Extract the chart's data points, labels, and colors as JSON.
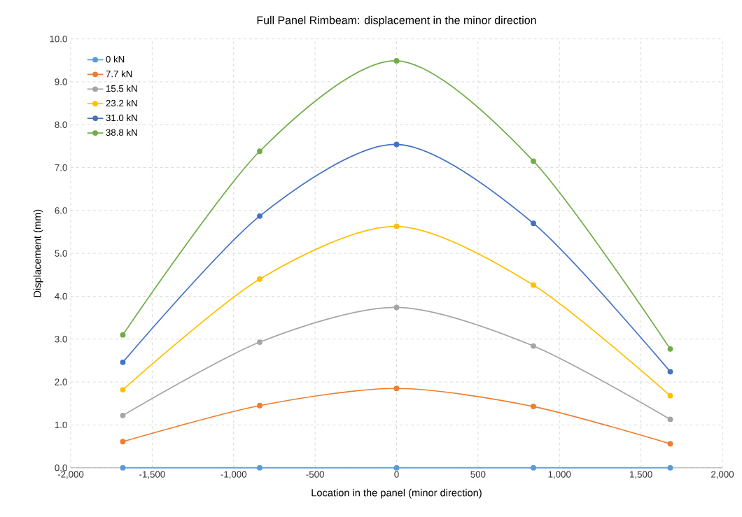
{
  "chart_data": {
    "type": "line",
    "title": "Full Panel Rimbeam: displacement in the minor direction",
    "xlabel": "Location in the panel (minor direction)",
    "ylabel": "Displacement (mm)",
    "x": [
      -1680,
      -840,
      0,
      840,
      1680
    ],
    "series": [
      {
        "name": "0 kN",
        "color": "#5b9bd5",
        "values": [
          0,
          0,
          0,
          0,
          0
        ]
      },
      {
        "name": "7.7 kN",
        "color": "#ed7d31",
        "values": [
          0.61,
          1.45,
          1.85,
          1.43,
          0.56
        ]
      },
      {
        "name": "15.5 kN",
        "color": "#a5a5a5",
        "values": [
          1.22,
          2.93,
          3.74,
          2.84,
          1.13
        ]
      },
      {
        "name": "23.2 kN",
        "color": "#ffc000",
        "values": [
          1.82,
          4.4,
          5.63,
          4.26,
          1.68
        ]
      },
      {
        "name": "31.0 kN",
        "color": "#4472c4",
        "values": [
          2.46,
          5.87,
          7.54,
          5.7,
          2.24
        ]
      },
      {
        "name": "38.8 kN",
        "color": "#70ad47",
        "values": [
          3.1,
          7.38,
          9.49,
          7.15,
          2.77
        ]
      }
    ],
    "xlim": [
      -2000,
      2000
    ],
    "xticks": [
      {
        "value": -2000,
        "label": "-2,000"
      },
      {
        "value": -1500,
        "label": "-1,500"
      },
      {
        "value": -1000,
        "label": "-1,000"
      },
      {
        "value": -500,
        "label": "-500"
      },
      {
        "value": 0,
        "label": "0"
      },
      {
        "value": 500,
        "label": "500"
      },
      {
        "value": 1000,
        "label": "1,000"
      },
      {
        "value": 1500,
        "label": "1,500"
      },
      {
        "value": 2000,
        "label": "2,000"
      }
    ],
    "ylim": [
      0,
      10
    ],
    "yticks": [
      {
        "value": 0,
        "label": "0.0"
      },
      {
        "value": 1,
        "label": "1.0"
      },
      {
        "value": 2,
        "label": "2.0"
      },
      {
        "value": 3,
        "label": "3.0"
      },
      {
        "value": 4,
        "label": "4.0"
      },
      {
        "value": 5,
        "label": "5.0"
      },
      {
        "value": 6,
        "label": "6.0"
      },
      {
        "value": 7,
        "label": "7.0"
      },
      {
        "value": 8,
        "label": "8.0"
      },
      {
        "value": 9,
        "label": "9.0"
      },
      {
        "value": 10,
        "label": "10.0"
      }
    ],
    "grid": true,
    "legend": "top left",
    "marker": "circle",
    "line_style": "solid"
  }
}
